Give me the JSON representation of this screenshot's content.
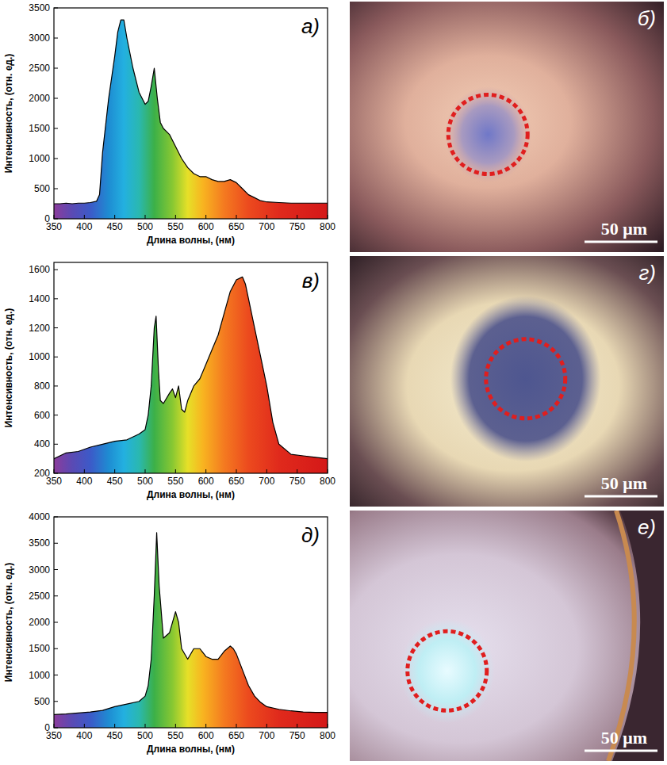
{
  "chart_data": [
    {
      "type": "area",
      "annotation": "а)",
      "x_label": "Длина волны, (нм)",
      "y_label": "Интенсивность, (отн. ед.)",
      "color": "#000000",
      "grid": false,
      "xlim": [
        350,
        800
      ],
      "xticks": [
        350,
        400,
        450,
        500,
        550,
        600,
        650,
        700,
        750,
        800
      ],
      "ylim": [
        0,
        3500
      ],
      "yticks": [
        0,
        500,
        1000,
        1500,
        2000,
        2500,
        3000,
        3500
      ],
      "x": [
        350,
        360,
        370,
        380,
        390,
        400,
        410,
        420,
        425,
        430,
        440,
        450,
        455,
        460,
        465,
        470,
        480,
        490,
        500,
        505,
        510,
        515,
        520,
        525,
        530,
        540,
        550,
        560,
        570,
        580,
        590,
        600,
        610,
        620,
        630,
        640,
        650,
        660,
        670,
        680,
        690,
        700,
        720,
        740,
        760,
        780,
        800
      ],
      "values": [
        250,
        250,
        260,
        250,
        260,
        260,
        270,
        290,
        400,
        1100,
        2000,
        2700,
        3100,
        3300,
        3300,
        3000,
        2500,
        2100,
        1900,
        1950,
        2200,
        2500,
        2000,
        1600,
        1500,
        1400,
        1200,
        1000,
        850,
        750,
        700,
        700,
        650,
        620,
        620,
        650,
        600,
        500,
        400,
        350,
        300,
        280,
        270,
        260,
        260,
        260,
        260
      ]
    },
    {
      "type": "area",
      "annotation": "в)",
      "x_label": "Длина волны, (нм)",
      "y_label": "Интенсивность, (отн. ед.)",
      "color": "#000000",
      "grid": false,
      "xlim": [
        350,
        800
      ],
      "xticks": [
        350,
        400,
        450,
        500,
        550,
        600,
        650,
        700,
        750,
        800
      ],
      "ylim": [
        200,
        1650
      ],
      "yticks": [
        200,
        400,
        600,
        800,
        1000,
        1200,
        1400,
        1600
      ],
      "x": [
        350,
        370,
        390,
        410,
        430,
        450,
        470,
        490,
        500,
        505,
        510,
        515,
        518,
        522,
        525,
        530,
        540,
        545,
        550,
        555,
        560,
        565,
        570,
        580,
        590,
        600,
        610,
        620,
        630,
        640,
        650,
        660,
        665,
        670,
        680,
        690,
        700,
        710,
        720,
        740,
        760,
        780,
        800
      ],
      "values": [
        300,
        340,
        350,
        380,
        400,
        420,
        430,
        470,
        500,
        600,
        800,
        1200,
        1280,
        900,
        700,
        680,
        750,
        780,
        720,
        800,
        640,
        620,
        700,
        800,
        850,
        950,
        1050,
        1150,
        1300,
        1450,
        1530,
        1550,
        1500,
        1400,
        1200,
        1000,
        800,
        550,
        400,
        330,
        320,
        310,
        300
      ]
    },
    {
      "type": "area",
      "annotation": "д)",
      "x_label": "Длина волны, (нм)",
      "y_label": "Интенсивность, (отн. ед.)",
      "color": "#000000",
      "grid": false,
      "xlim": [
        350,
        800
      ],
      "xticks": [
        350,
        400,
        450,
        500,
        550,
        600,
        650,
        700,
        750,
        800
      ],
      "ylim": [
        0,
        4000
      ],
      "yticks": [
        0,
        500,
        1000,
        1500,
        2000,
        2500,
        3000,
        3500,
        4000
      ],
      "x": [
        350,
        370,
        390,
        410,
        430,
        450,
        470,
        490,
        500,
        505,
        510,
        515,
        519,
        523,
        530,
        540,
        550,
        555,
        560,
        570,
        580,
        590,
        600,
        610,
        620,
        630,
        640,
        645,
        650,
        660,
        670,
        680,
        690,
        700,
        720,
        740,
        760,
        780,
        800
      ],
      "values": [
        250,
        260,
        280,
        300,
        330,
        400,
        450,
        500,
        600,
        800,
        1300,
        2500,
        3700,
        2700,
        1700,
        1800,
        2200,
        2000,
        1500,
        1300,
        1500,
        1500,
        1350,
        1300,
        1300,
        1450,
        1550,
        1500,
        1400,
        1100,
        800,
        600,
        480,
        400,
        350,
        320,
        300,
        290,
        290
      ]
    }
  ],
  "images": [
    {
      "label": "б)",
      "scale_bar": "50 μm"
    },
    {
      "label": "г)",
      "scale_bar": "50 μm"
    },
    {
      "label": "е)",
      "scale_bar": "50 μm"
    }
  ]
}
